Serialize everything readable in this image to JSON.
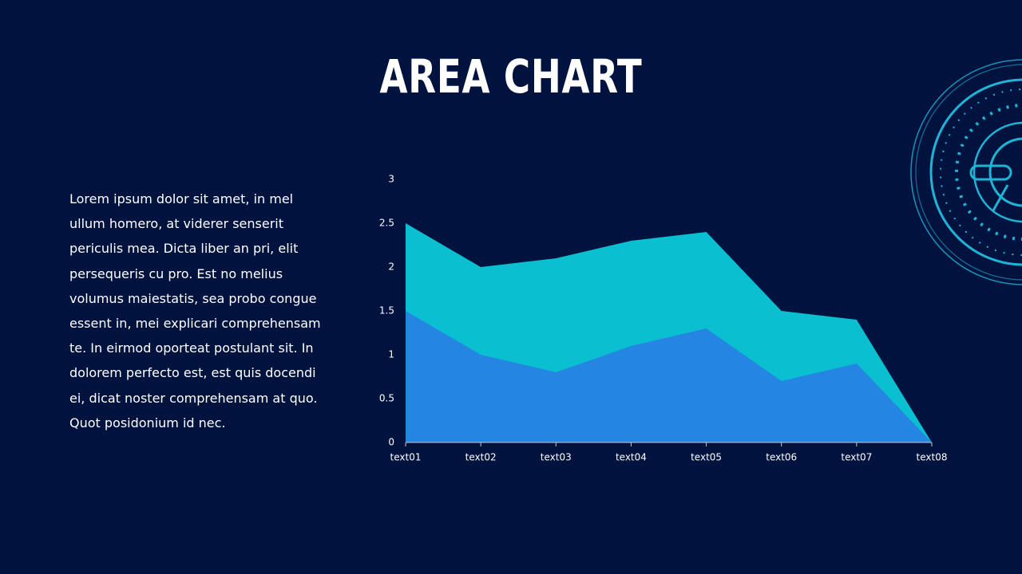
{
  "chart_data": {
    "type": "area",
    "title": "AREA CHART",
    "text": "Lorem ipsum dolor sit amet, in mel ullum homero, at viderer senserit periculis mea. Dicta liber an pri, elit persequeris cu pro. Est no melius volumus maiestatis, sea probo congue essent in, mei explicari comprehensam te. In eirmod oporteat postulant sit. In dolorem perfecto est, est quis docendi ei, dicat noster comprehensam at quo. Quot posidonium id nec.",
    "categories": [
      "text01",
      "text02",
      "text03",
      "text04",
      "text05",
      "text06",
      "text07",
      "text08"
    ],
    "series": [
      {
        "color": "#0abfcf",
        "values": [
          2.5,
          2.0,
          2.1,
          2.3,
          2.4,
          1.5,
          1.4,
          0
        ]
      },
      {
        "color": "#2485e3",
        "values": [
          1.5,
          1.0,
          0.8,
          1.1,
          1.3,
          0.7,
          0.9,
          0
        ]
      }
    ],
    "ylim": [
      0,
      3
    ],
    "yticks": [
      0,
      0.5,
      1,
      1.5,
      2,
      2.5,
      3
    ],
    "grid": false
  }
}
